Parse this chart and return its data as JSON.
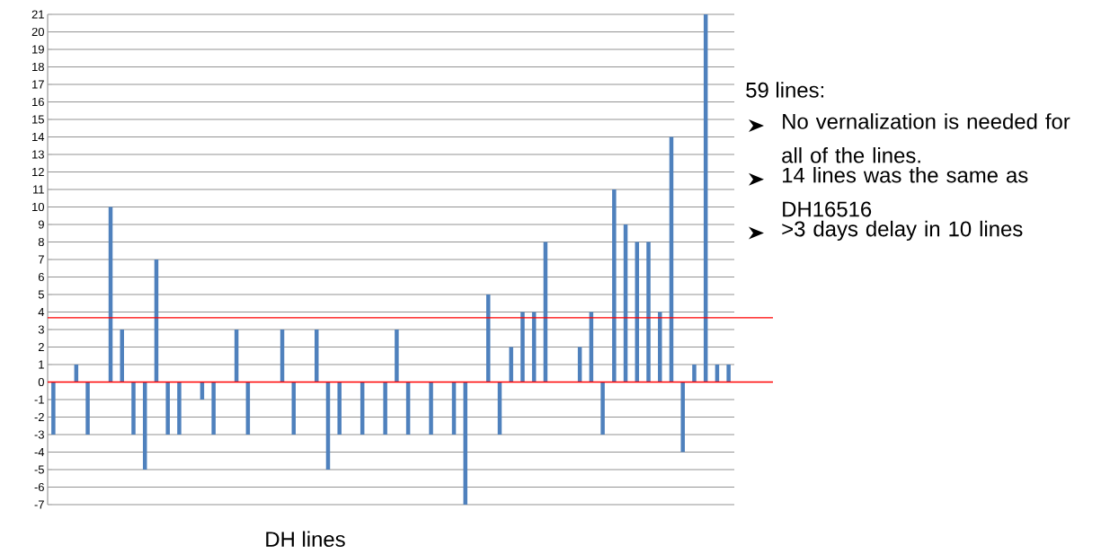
{
  "chart_data": {
    "type": "bar",
    "xlabel": "DH lines",
    "categories": [
      null,
      null,
      null,
      null,
      null,
      null,
      null,
      null,
      null,
      null,
      null,
      null,
      null,
      null,
      null,
      null,
      null,
      null,
      null,
      null,
      null,
      null,
      null,
      null,
      null,
      null,
      null,
      null,
      null,
      null,
      null,
      null,
      null,
      null,
      null,
      null,
      null,
      null,
      null,
      null,
      null,
      null,
      null,
      null,
      null,
      null,
      null,
      null,
      null,
      null,
      null,
      null,
      null,
      null,
      null,
      null,
      null,
      null,
      null,
      null
    ],
    "values": [
      -3,
      0,
      1,
      -3,
      0,
      10,
      3,
      -3,
      -5,
      7,
      -3,
      -3,
      0,
      -1,
      -3,
      0,
      3,
      -3,
      0,
      0,
      3,
      -3,
      0,
      3,
      -5,
      -3,
      0,
      -3,
      0,
      -3,
      3,
      -3,
      0,
      -3,
      0,
      -3,
      -7,
      0,
      5,
      -3,
      2,
      4,
      4,
      8,
      0,
      0,
      2,
      4,
      -3,
      11,
      9,
      8,
      8,
      4,
      14,
      -4,
      1,
      21,
      1,
      1
    ],
    "color": "#4f81bd",
    "ylim": [
      -7,
      21
    ],
    "yticks": [
      -7,
      -6,
      -5,
      -4,
      -3,
      -2,
      -1,
      0,
      1,
      2,
      3,
      4,
      5,
      6,
      7,
      8,
      9,
      10,
      11,
      12,
      13,
      14,
      15,
      16,
      17,
      18,
      19,
      20,
      21
    ],
    "grid": "y",
    "ref_lines": [
      {
        "axis": "y",
        "value": 0,
        "color": "#ff0000"
      },
      {
        "axis": "y",
        "value": 3.67,
        "color": "#ff0000"
      }
    ],
    "annotations": [
      "59 lines:",
      "No vernalization is needed for all of the lines.",
      "14 lines was the same as DH16516",
      ">3 days delay in 10 lines"
    ]
  }
}
